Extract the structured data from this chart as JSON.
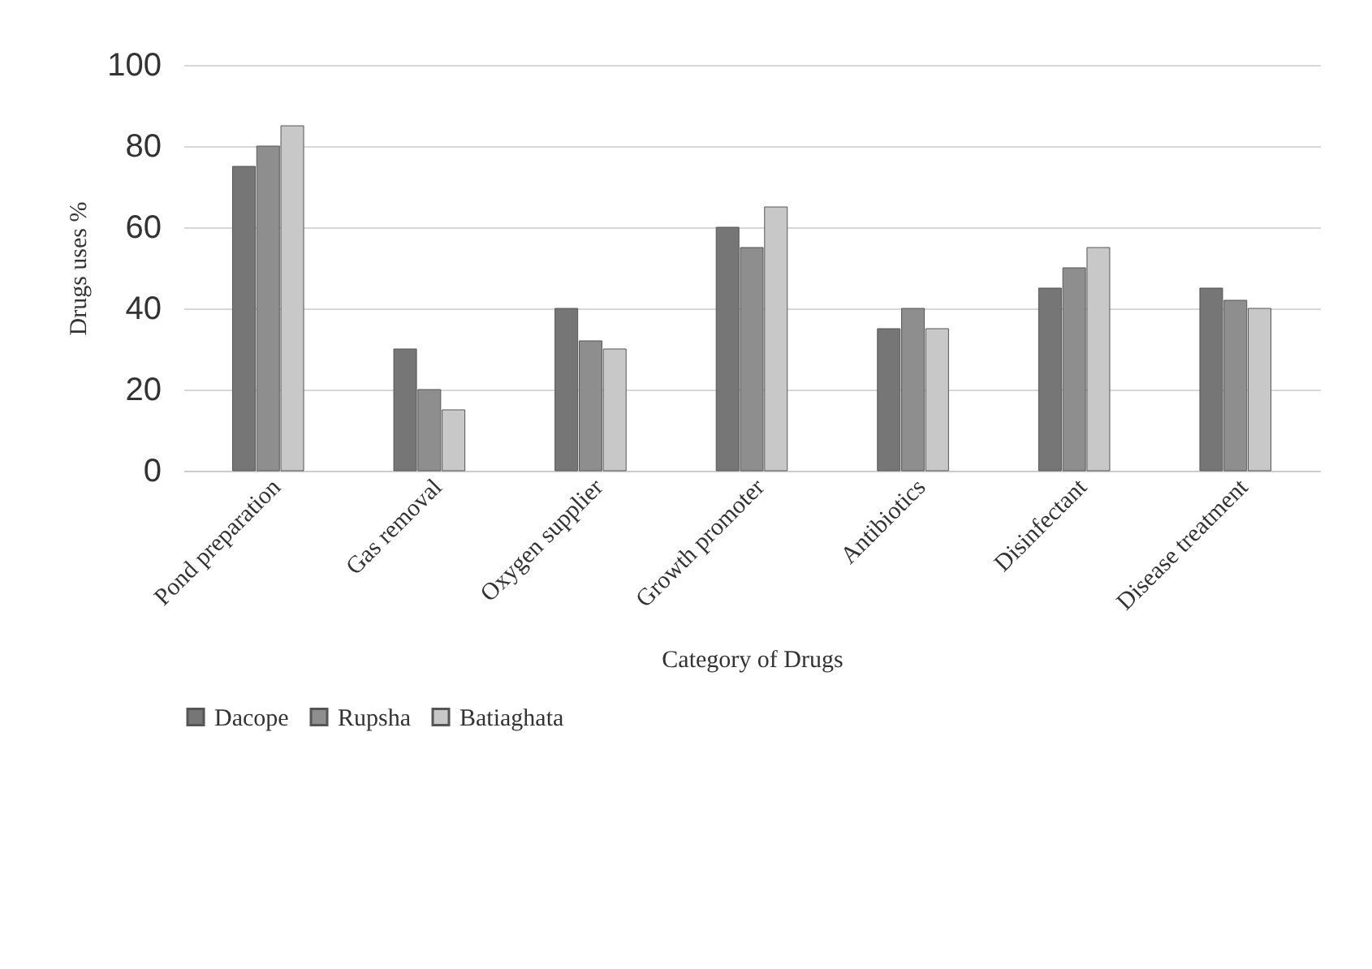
{
  "chart_data": {
    "type": "bar",
    "xlabel": "Category of Drugs",
    "ylabel": "Drugs uses %",
    "categories": [
      "Pond preparation",
      "Gas removal",
      "Oxygen supplier",
      "Growth promoter",
      "Antibiotics",
      "Disinfectant",
      "Disease treatment"
    ],
    "series": [
      {
        "name": "Dacope",
        "color": "#767676",
        "values": [
          75,
          30,
          40,
          60,
          35,
          45,
          45
        ]
      },
      {
        "name": "Rupsha",
        "color": "#8e8e8e",
        "values": [
          80,
          20,
          32,
          55,
          40,
          50,
          42
        ]
      },
      {
        "name": "Batiaghata",
        "color": "#c8c8c8",
        "values": [
          85,
          15,
          30,
          65,
          35,
          55,
          40
        ]
      }
    ],
    "ylim": [
      0,
      100
    ],
    "yticks": [
      0,
      20,
      40,
      60,
      80,
      100
    ],
    "grid": "y",
    "legend": "bottom"
  }
}
